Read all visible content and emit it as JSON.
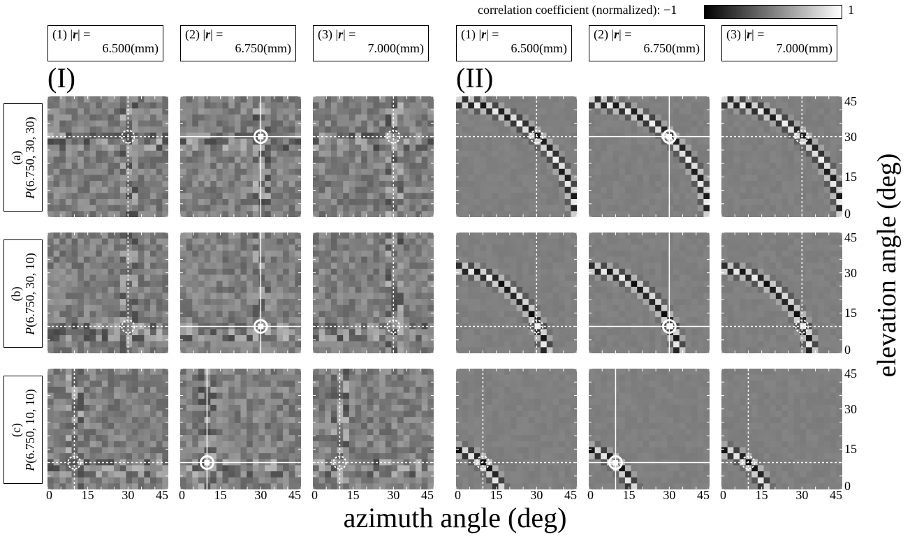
{
  "colorbar": {
    "label": "correlation coefficient (normalized): −1",
    "max_label": "1",
    "min": -1,
    "max": 1
  },
  "headers": [
    {
      "line1a": "(1) |",
      "r": "r",
      "line1b": "| =",
      "line2": "6.500(mm)"
    },
    {
      "line1a": "(2) |",
      "r": "r",
      "line1b": "| =",
      "line2": "6.750(mm)"
    },
    {
      "line1a": "(3) |",
      "r": "r",
      "line1b": "| =",
      "line2": "7.000(mm)"
    },
    {
      "line1a": "(1) |",
      "r": "r",
      "line1b": "| =",
      "line2": "6.500(mm)"
    },
    {
      "line1a": "(2) |",
      "r": "r",
      "line1b": "| =",
      "line2": "6.750(mm)"
    },
    {
      "line1a": "(3) |",
      "r": "r",
      "line1b": "| =",
      "line2": "7.000(mm)"
    }
  ],
  "sections": {
    "left": "(I)",
    "right": "(II)"
  },
  "rows": [
    {
      "tag": "(a)",
      "label": "P",
      "args": "(6.750, 30, 30)"
    },
    {
      "tag": "(b)",
      "label": "P",
      "args": "(6.750, 30, 10)"
    },
    {
      "tag": "(c)",
      "label": "P",
      "args": "(6.750, 10, 10)"
    }
  ],
  "x_tick_labels": [
    "0",
    "15",
    "30",
    "45"
  ],
  "y_tick_labels": [
    "45",
    "30",
    "15",
    "0"
  ],
  "x_axis_title": "azimuth angle (deg)",
  "y_axis_title": "elevation angle (deg)",
  "chart_data": {
    "type": "heatmap",
    "xlabel": "azimuth angle (deg)",
    "ylabel": "elevation angle (deg)",
    "xlim": [
      0,
      45
    ],
    "ylim": [
      0,
      45
    ],
    "grid_cells": 20,
    "colorscale": {
      "min": -1,
      "max": 1,
      "low_color": "#000000",
      "high_color": "#ffffff"
    },
    "panel_columns": [
      {
        "section": "(I)",
        "radius_mm": 6.5
      },
      {
        "section": "(I)",
        "radius_mm": 6.75
      },
      {
        "section": "(I)",
        "radius_mm": 7.0
      },
      {
        "section": "(II)",
        "radius_mm": 6.5
      },
      {
        "section": "(II)",
        "radius_mm": 6.75
      },
      {
        "section": "(II)",
        "radius_mm": 7.0
      }
    ],
    "panel_rows": [
      {
        "source": "P(6.750, 30, 30)",
        "azimuth": 30,
        "elevation": 30
      },
      {
        "source": "P(6.750, 30, 10)",
        "azimuth": 30,
        "elevation": 10
      },
      {
        "source": "P(6.750, 10, 10)",
        "azimuth": 10,
        "elevation": 10
      }
    ],
    "marker_solid_column": [
      1,
      4
    ]
  }
}
